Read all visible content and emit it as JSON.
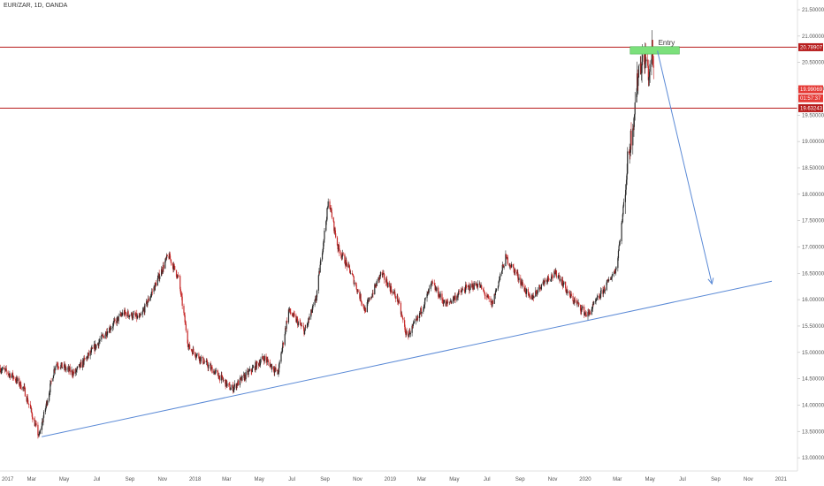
{
  "header": {
    "symbol_title": "EUR/ZAR, 1D, OANDA"
  },
  "colors": {
    "up": "#2a2a2a",
    "down": "#c62828",
    "level_line": "#b71c1c",
    "trend_line": "#5b8ad6",
    "entry_zone": "#7be07b",
    "axis_text": "#555555"
  },
  "chart_data": {
    "type": "candlestick",
    "title": "EUR/ZAR, 1D, OANDA",
    "ylim": [
      12.75,
      21.45
    ],
    "y_ticks": [
      "13.00000",
      "13.50000",
      "14.00000",
      "14.50000",
      "15.00000",
      "15.50000",
      "16.00000",
      "16.50000",
      "17.00000",
      "17.50000",
      "18.00000",
      "18.50000",
      "19.00000",
      "19.50000",
      "20.00000",
      "20.50000",
      "21.00000",
      "21.50000"
    ],
    "x_ticks": [
      "2017",
      "Mar",
      "May",
      "Jul",
      "Sep",
      "Nov",
      "2018",
      "Mar",
      "May",
      "Jul",
      "Sep",
      "Nov",
      "2019",
      "Mar",
      "May",
      "Jul",
      "Sep",
      "Nov",
      "2020",
      "Mar",
      "May",
      "Jul",
      "Sep",
      "Nov",
      "2021"
    ],
    "x_range": [
      "2017-01-01",
      "2021-02-01"
    ],
    "price_path": [
      [
        "2017-01-01",
        14.7
      ],
      [
        "2017-01-25",
        14.55
      ],
      [
        "2017-02-15",
        14.3
      ],
      [
        "2017-03-15",
        13.4
      ],
      [
        "2017-04-15",
        14.8
      ],
      [
        "2017-05-20",
        14.6
      ],
      [
        "2017-06-20",
        15.0
      ],
      [
        "2017-07-20",
        15.4
      ],
      [
        "2017-08-20",
        15.75
      ],
      [
        "2017-09-20",
        15.65
      ],
      [
        "2017-10-15",
        16.2
      ],
      [
        "2017-11-12",
        16.85
      ],
      [
        "2017-12-01",
        16.4
      ],
      [
        "2017-12-20",
        15.1
      ],
      [
        "2018-01-20",
        14.8
      ],
      [
        "2018-02-15",
        14.55
      ],
      [
        "2018-03-10",
        14.3
      ],
      [
        "2018-04-10",
        14.6
      ],
      [
        "2018-05-10",
        14.9
      ],
      [
        "2018-06-05",
        14.6
      ],
      [
        "2018-06-25",
        15.8
      ],
      [
        "2018-07-25",
        15.4
      ],
      [
        "2018-08-15",
        16.0
      ],
      [
        "2018-09-08",
        17.9
      ],
      [
        "2018-09-25",
        17.0
      ],
      [
        "2018-10-20",
        16.5
      ],
      [
        "2018-11-15",
        15.8
      ],
      [
        "2018-12-15",
        16.5
      ],
      [
        "2019-01-15",
        16.0
      ],
      [
        "2019-02-01",
        15.3
      ],
      [
        "2019-02-20",
        15.6
      ],
      [
        "2019-03-20",
        16.3
      ],
      [
        "2019-04-15",
        15.9
      ],
      [
        "2019-05-20",
        16.2
      ],
      [
        "2019-06-15",
        16.3
      ],
      [
        "2019-07-10",
        15.9
      ],
      [
        "2019-08-05",
        16.8
      ],
      [
        "2019-08-25",
        16.5
      ],
      [
        "2019-09-20",
        16.0
      ],
      [
        "2019-10-20",
        16.4
      ],
      [
        "2019-11-10",
        16.5
      ],
      [
        "2019-12-01",
        16.1
      ],
      [
        "2020-01-05",
        15.7
      ],
      [
        "2020-02-05",
        16.2
      ],
      [
        "2020-02-28",
        16.6
      ],
      [
        "2020-03-10",
        17.5
      ],
      [
        "2020-03-20",
        18.6
      ],
      [
        "2020-04-01",
        19.5
      ],
      [
        "2020-04-10",
        20.4
      ],
      [
        "2020-04-22",
        20.6
      ],
      [
        "2020-04-30",
        20.2
      ],
      [
        "2020-05-05",
        20.75
      ],
      [
        "2020-05-10",
        19.99
      ]
    ],
    "series": [
      {
        "name": "20.78907",
        "kind": "horizontal_level",
        "y": 20.78907
      },
      {
        "name": "19.63243",
        "kind": "horizontal_level",
        "y": 19.63243
      },
      {
        "name": "19.99069",
        "kind": "last_price",
        "y": 19.99069
      }
    ],
    "trendline": {
      "from": [
        "2017-03-20",
        13.4
      ],
      "to": [
        "2020-12-15",
        16.35
      ]
    },
    "entry_zone": {
      "x_from": "2020-03-25",
      "x_to": "2020-06-25",
      "y_low": 20.66,
      "y_high": 20.8,
      "label": "Entry"
    },
    "projection_arrow": {
      "from": [
        "2020-05-15",
        20.72
      ],
      "to": [
        "2020-08-25",
        16.3
      ]
    },
    "price_badges": [
      {
        "text": "20.78907",
        "y": 20.78907,
        "color": "#b71c1c"
      },
      {
        "text": "19.99069",
        "y": 19.99069,
        "color": "#e53935"
      },
      {
        "text": "01:57:37",
        "y": 19.82,
        "color": "#e53935"
      },
      {
        "text": "19.63243",
        "y": 19.63243,
        "color": "#b71c1c"
      }
    ],
    "grid": false
  }
}
